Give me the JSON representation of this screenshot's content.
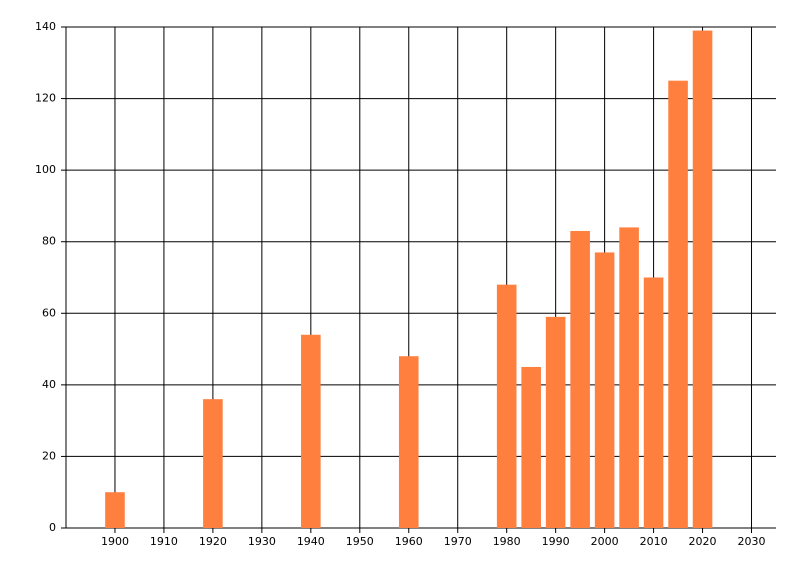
{
  "chart_data": {
    "type": "bar",
    "x": [
      1900,
      1920,
      1940,
      1960,
      1980,
      1985,
      1990,
      1995,
      2000,
      2005,
      2010,
      2015,
      2020
    ],
    "values": [
      10,
      36,
      54,
      48,
      68,
      45,
      59,
      83,
      77,
      84,
      70,
      125,
      139
    ],
    "color": "#ff7f3f",
    "xlim": [
      1890,
      2035
    ],
    "xticks": [
      1900,
      1910,
      1920,
      1930,
      1940,
      1950,
      1960,
      1970,
      1980,
      1990,
      2000,
      2010,
      2020,
      2030
    ],
    "ylim": [
      0,
      140
    ],
    "yticks": [
      0,
      20,
      40,
      60,
      80,
      100,
      120,
      140
    ],
    "grid": true
  }
}
